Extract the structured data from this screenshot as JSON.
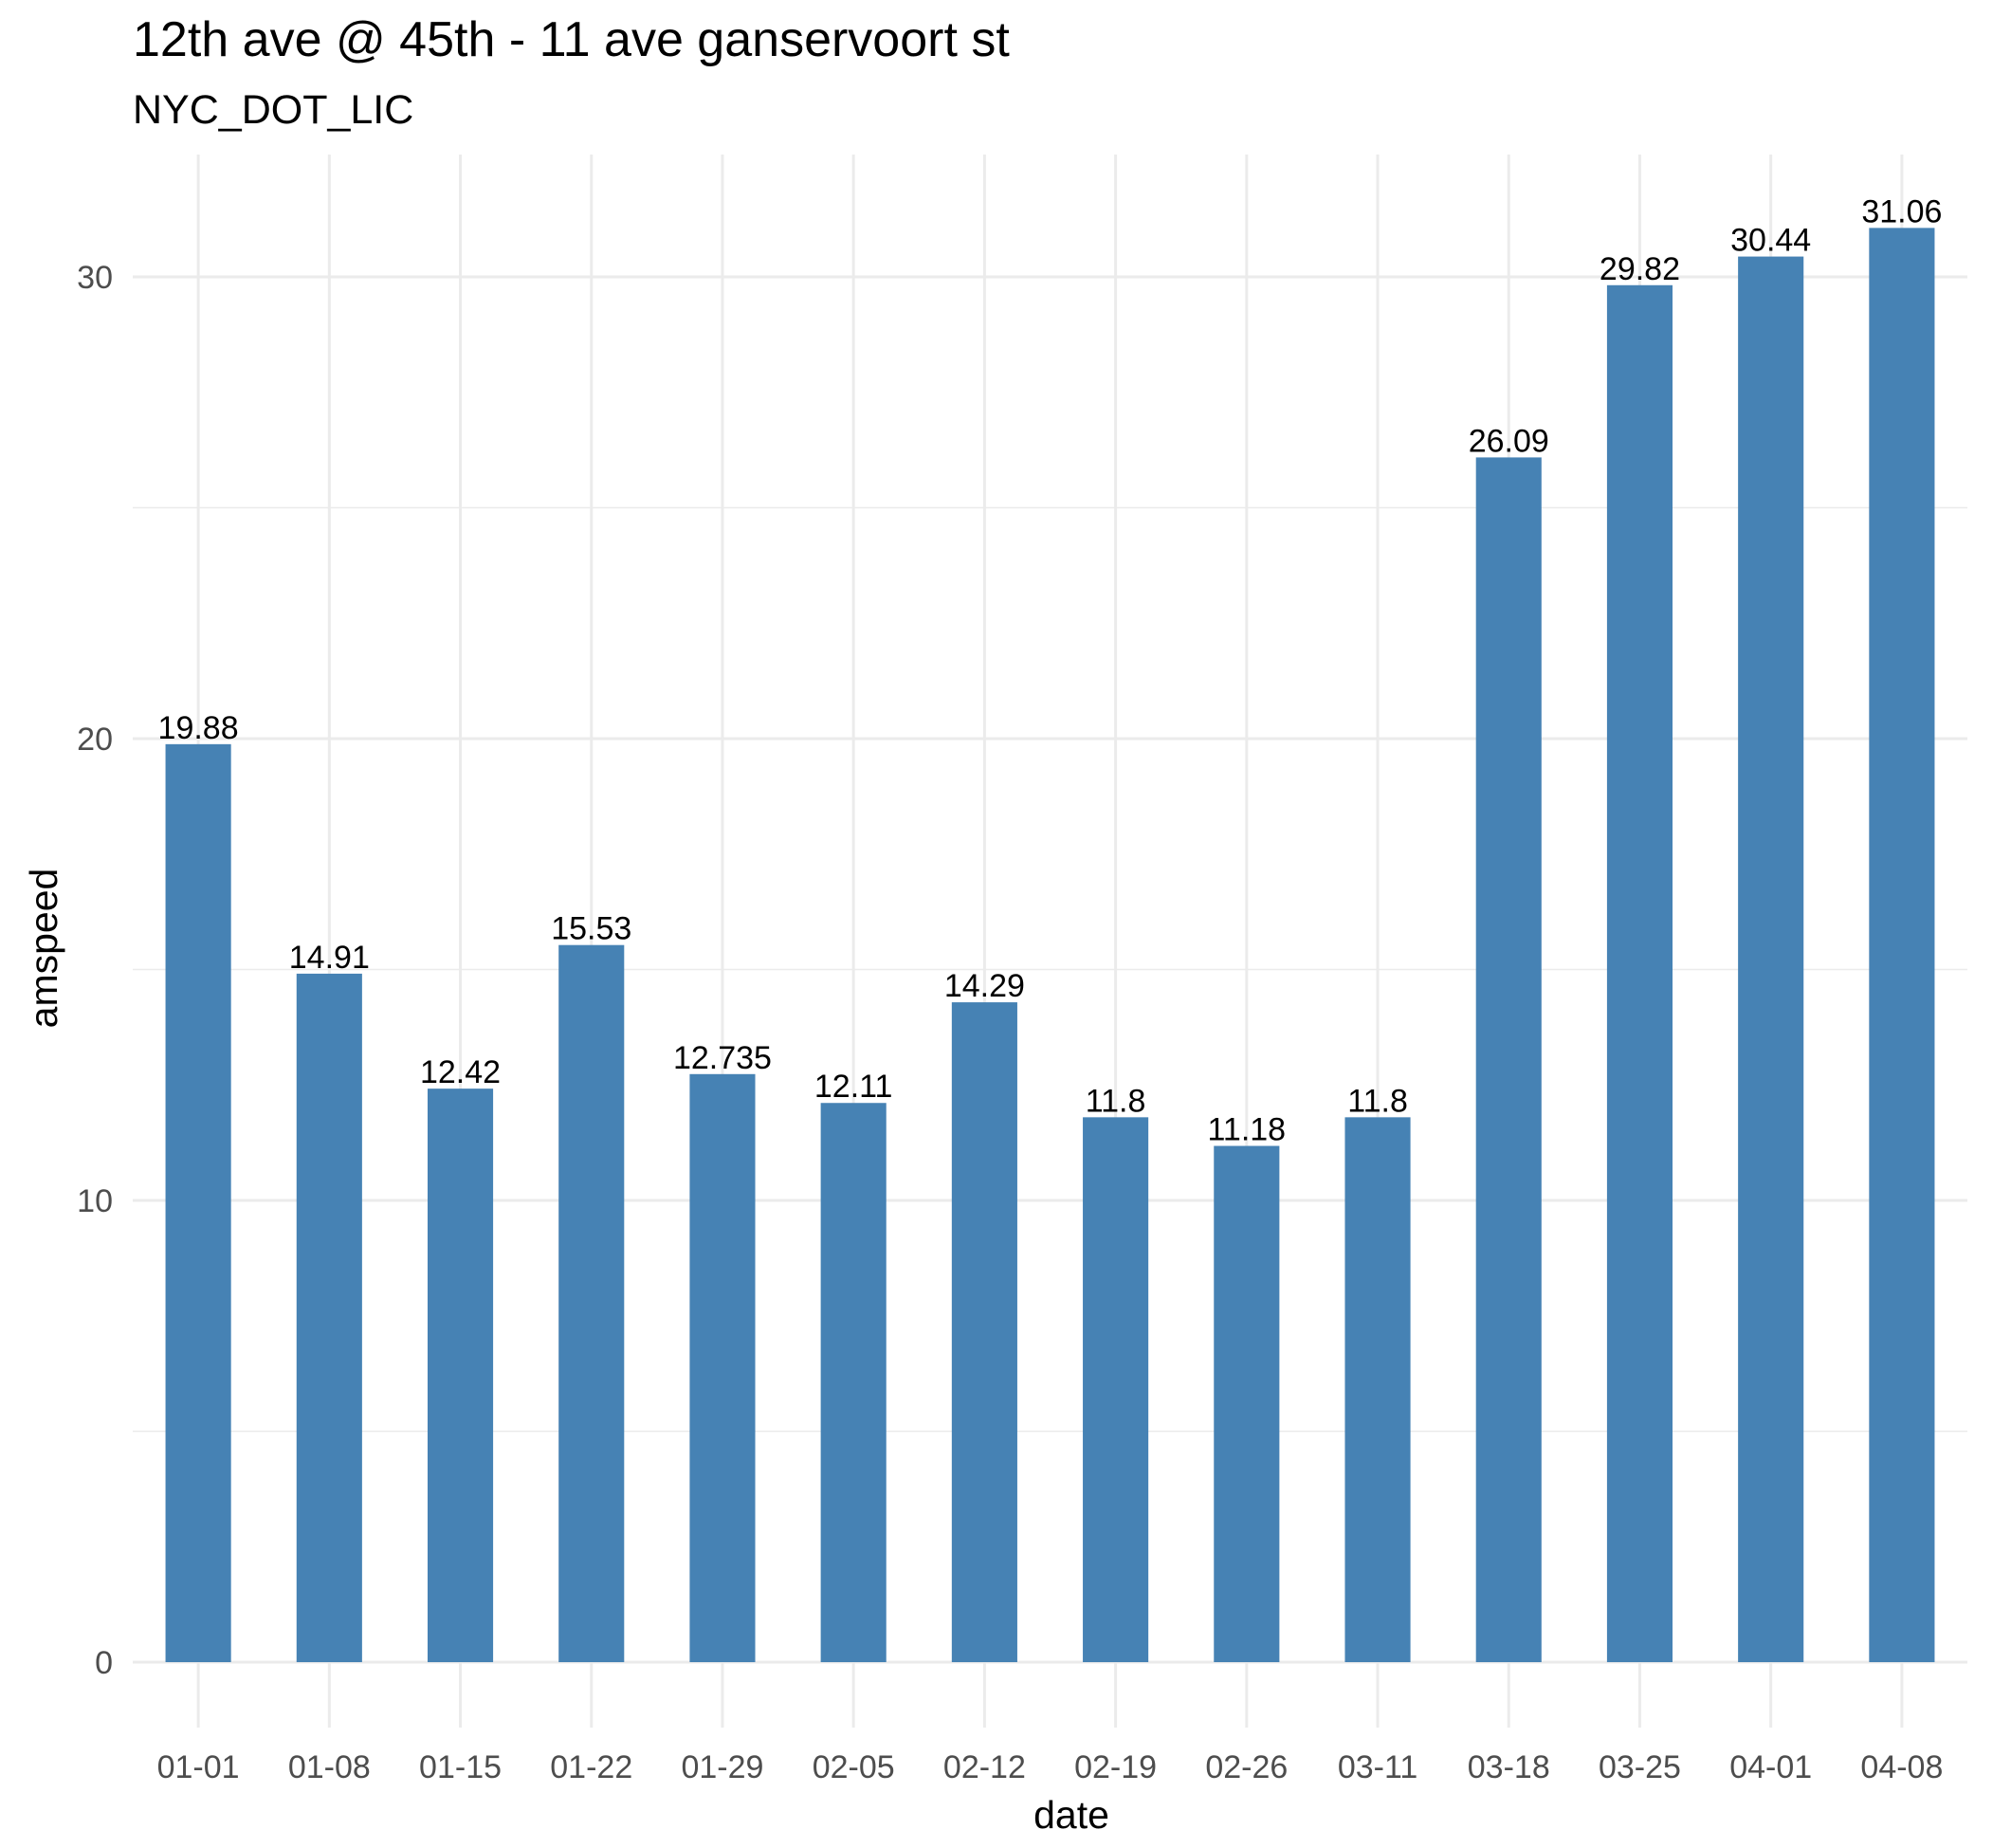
{
  "chart_data": {
    "type": "bar",
    "title": "12th ave @ 45th - 11 ave ganservoort st",
    "subtitle": "NYC_DOT_LIC",
    "xlabel": "date",
    "ylabel": "amspeed",
    "categories": [
      "01-01",
      "01-08",
      "01-15",
      "01-22",
      "01-29",
      "02-05",
      "02-12",
      "02-19",
      "02-26",
      "03-11",
      "03-18",
      "03-25",
      "04-01",
      "04-08"
    ],
    "values": [
      19.88,
      14.91,
      12.42,
      15.53,
      12.735,
      12.11,
      14.29,
      11.8,
      11.18,
      11.8,
      26.09,
      29.82,
      30.44,
      31.06
    ],
    "data_labels": [
      "19.88",
      "14.91",
      "12.42",
      "15.53",
      "12.735",
      "12.11",
      "14.29",
      "11.8",
      "11.18",
      "11.8",
      "26.09",
      "29.82",
      "30.44",
      "31.06"
    ],
    "yticks": [
      0,
      10,
      20,
      30
    ],
    "ylim": [
      -1.55,
      32.6
    ],
    "grid": true,
    "bar_color": "#4682B4"
  }
}
